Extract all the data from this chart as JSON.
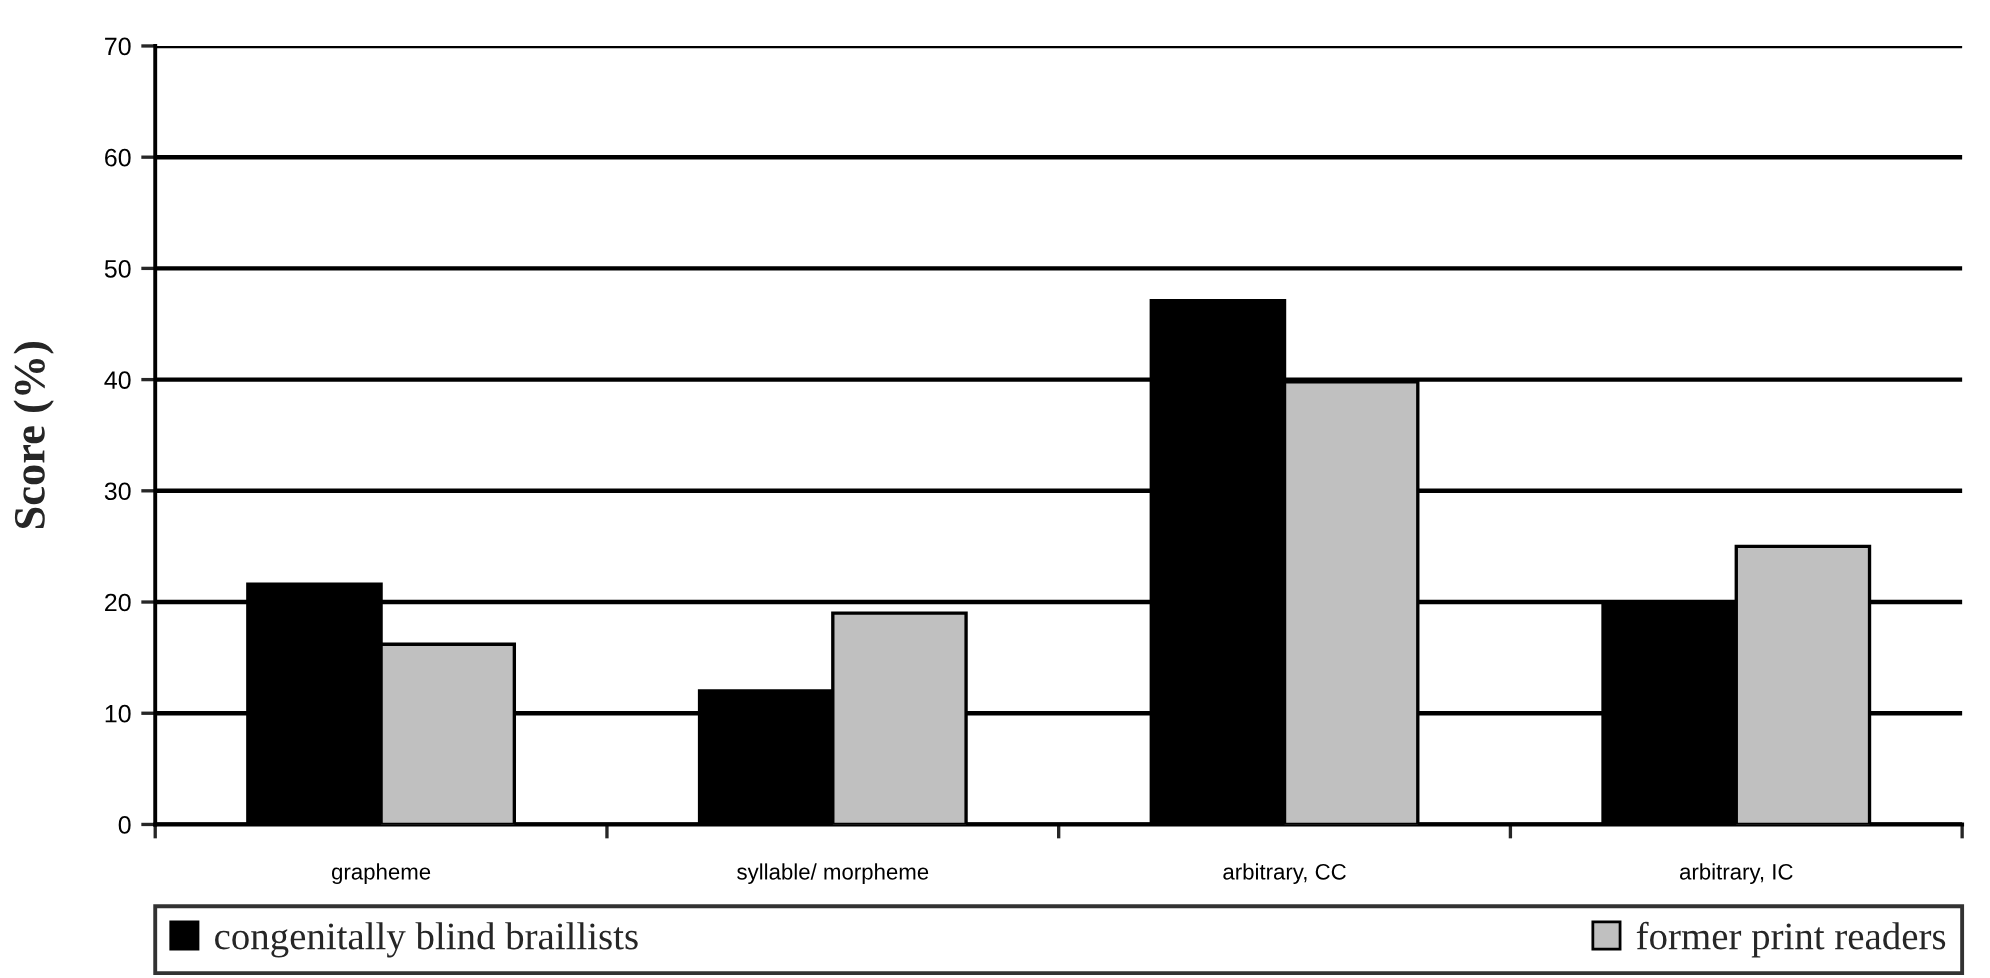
{
  "chart_data": {
    "type": "bar",
    "ylabel": "Score (%)",
    "categories": [
      "grapheme",
      "syllable/ morpheme",
      "arbitrary, CC",
      "arbitrary, IC"
    ],
    "series": [
      {
        "name": "congenitally blind braillists",
        "color": "#000000",
        "values": [
          21.6,
          12,
          47.1,
          20
        ]
      },
      {
        "name": "former print readers",
        "color": "#c0c0c0",
        "values": [
          16.2,
          19,
          39.8,
          25
        ]
      }
    ],
    "ylim": [
      0,
      70
    ],
    "yticks": [
      0,
      10,
      20,
      30,
      40,
      50,
      60,
      70
    ],
    "grid": "y",
    "legend": "bottom"
  }
}
